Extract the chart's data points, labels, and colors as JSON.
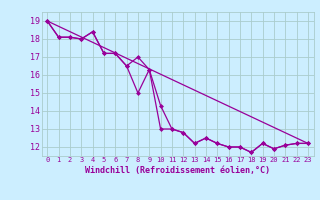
{
  "xlabel": "Windchill (Refroidissement éolien,°C)",
  "background_color": "#cceeff",
  "line_color": "#990099",
  "grid_color": "#aacccc",
  "xlim": [
    -0.5,
    23.5
  ],
  "ylim": [
    11.5,
    19.5
  ],
  "yticks": [
    12,
    13,
    14,
    15,
    16,
    17,
    18,
    19
  ],
  "xticks": [
    0,
    1,
    2,
    3,
    4,
    5,
    6,
    7,
    8,
    9,
    10,
    11,
    12,
    13,
    14,
    15,
    16,
    17,
    18,
    19,
    20,
    21,
    22,
    23
  ],
  "line1_x": [
    0,
    1,
    2,
    3,
    4,
    5,
    6,
    7,
    8,
    9,
    10,
    11,
    12,
    13,
    14,
    15,
    16,
    17,
    18,
    19,
    20,
    21,
    22,
    23
  ],
  "line1_y": [
    19.0,
    18.1,
    18.1,
    18.0,
    18.4,
    17.2,
    17.2,
    16.5,
    17.0,
    16.3,
    14.3,
    13.0,
    12.8,
    12.2,
    12.5,
    12.2,
    12.0,
    12.0,
    11.7,
    12.2,
    11.9,
    12.1,
    12.2,
    12.2
  ],
  "line2_x": [
    0,
    1,
    2,
    3,
    4,
    5,
    6,
    7,
    8,
    9,
    10,
    11,
    12,
    13,
    14,
    15,
    16,
    17,
    18,
    19,
    20,
    21,
    22,
    23
  ],
  "line2_y": [
    19.0,
    18.1,
    18.1,
    18.0,
    18.4,
    17.2,
    17.2,
    16.5,
    15.0,
    16.3,
    13.0,
    13.0,
    12.8,
    12.2,
    12.5,
    12.2,
    12.0,
    12.0,
    11.7,
    12.2,
    11.9,
    12.1,
    12.2,
    12.2
  ],
  "line3_x": [
    0,
    23
  ],
  "line3_y": [
    19.0,
    12.2
  ],
  "marker_size": 2.5,
  "linewidth": 0.9
}
